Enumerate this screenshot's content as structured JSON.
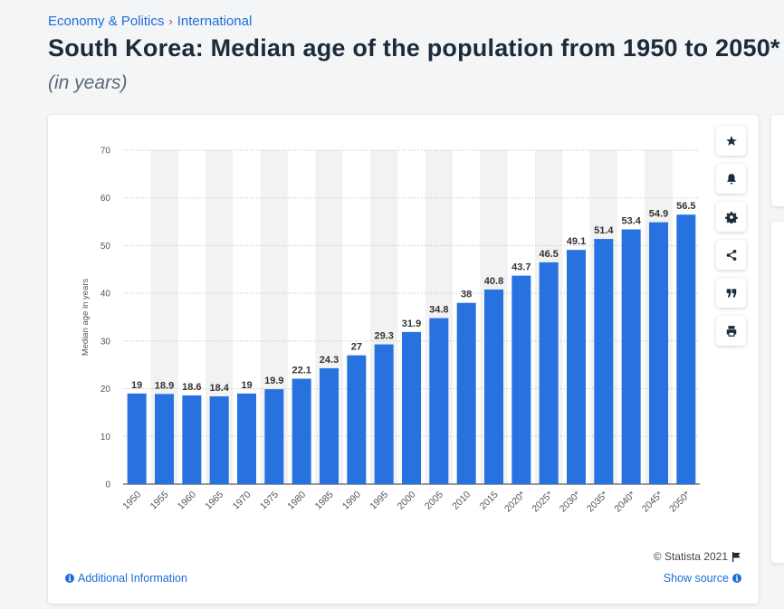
{
  "breadcrumb": {
    "items": [
      "Economy & Politics",
      "International"
    ],
    "separator": "›"
  },
  "header": {
    "title": "South Korea: Median age of the population from 1950 to 2050*",
    "subtitle": "(in years)"
  },
  "toolbar": {
    "buttons": [
      "star-icon",
      "bell-icon",
      "gear-icon",
      "share-icon",
      "quote-icon",
      "print-icon"
    ]
  },
  "footer": {
    "copyright": "© Statista 2021",
    "additional_info": "Additional Information",
    "show_source": "Show source"
  },
  "colors": {
    "bar": "#2872e0",
    "link": "#1a6ed8",
    "band": "#f2f2f2"
  },
  "chart_data": {
    "type": "bar",
    "categories": [
      "1950",
      "1955",
      "1960",
      "1965",
      "1970",
      "1975",
      "1980",
      "1985",
      "1990",
      "1995",
      "2000",
      "2005",
      "2010",
      "2015",
      "2020*",
      "2025*",
      "2030*",
      "2035*",
      "2040*",
      "2045*",
      "2050*"
    ],
    "values": [
      19,
      18.9,
      18.6,
      18.4,
      19,
      19.9,
      22.1,
      24.3,
      27,
      29.3,
      31.9,
      34.8,
      38,
      40.8,
      43.7,
      46.5,
      49.1,
      51.4,
      53.4,
      54.9,
      56.5
    ],
    "ylabel": "Median age in years",
    "xlabel": "",
    "ylim": [
      0,
      70
    ],
    "yticks": [
      0,
      10,
      20,
      30,
      40,
      50,
      60,
      70
    ],
    "grid": true,
    "legend": "none"
  }
}
